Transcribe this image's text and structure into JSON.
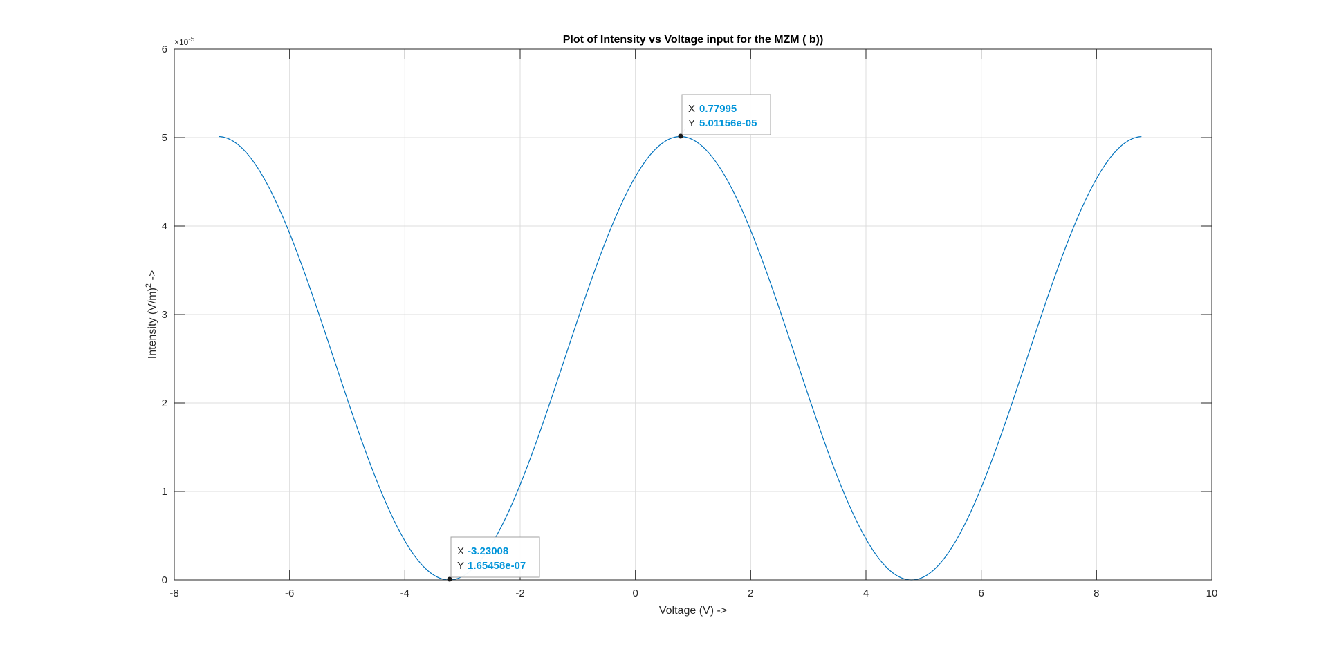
{
  "chart_data": {
    "type": "line",
    "title": "Plot of Intensity vs Voltage input for the MZM ( b))",
    "xlabel": "Voltage (V) ->",
    "ylabel_main": "Intensity (V/m)",
    "ylabel_sup": "2",
    "ylabel_tail": " ->",
    "y_exponent_base": "×10",
    "y_exponent_power": "-5",
    "xlim": [
      -8,
      10
    ],
    "ylim": [
      0,
      6
    ],
    "xticks": [
      -8,
      -6,
      -4,
      -2,
      0,
      2,
      4,
      6,
      8,
      10
    ],
    "yticks": [
      0,
      1,
      2,
      3,
      4,
      5,
      6
    ],
    "grid": true,
    "line_color": "#0072bd",
    "series": [
      {
        "x_range": [
          -7.22,
          8.78
        ],
        "function": "y = 5.01156 * cos^2(pi * (x - 0.77995) / 8.02)",
        "y_scale": "1e-5",
        "x": [
          -7.22,
          -6.22,
          -5.22,
          -4.22,
          -3.23008,
          -2.22,
          -1.22,
          -0.22,
          0.77995,
          1.78,
          2.78,
          3.78,
          4.78,
          5.78,
          6.78,
          7.78,
          8.78
        ],
        "y": [
          5.01,
          4.27,
          2.48,
          0.72,
          0.0165,
          0.74,
          2.53,
          4.3,
          5.01156,
          4.28,
          2.47,
          0.71,
          0.0,
          0.74,
          2.52,
          4.3,
          5.01
        ]
      }
    ],
    "datatips": [
      {
        "x_label": "X",
        "y_label": "Y",
        "x_text": "0.77995",
        "y_text": "5.01156e-05",
        "x": 0.77995,
        "y": 5.01156
      },
      {
        "x_label": "X",
        "y_label": "Y",
        "x_text": "-3.23008",
        "y_text": "1.65458e-07",
        "x": -3.23008,
        "y": 0.0165458
      }
    ]
  }
}
